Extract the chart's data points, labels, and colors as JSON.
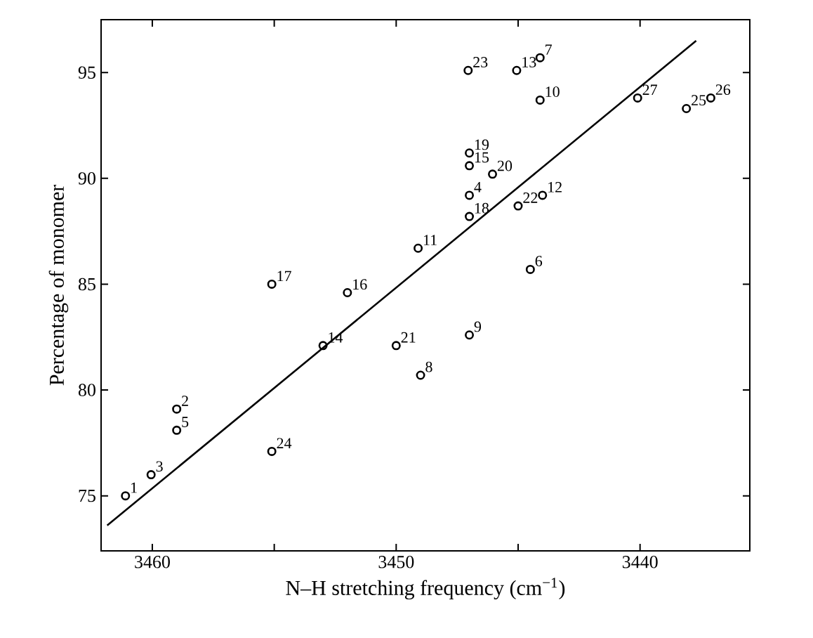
{
  "chart_data": {
    "type": "scatter",
    "xlabel": "N–H stretching frequency (cm$^{−1}$)",
    "ylabel": "Percentage of monomer",
    "xlim": [
      3462.1,
      3435.5
    ],
    "ylim": [
      72.4,
      97.5
    ],
    "xticks": [
      3460,
      {
        "value": 3455,
        "label": null
      },
      3450,
      {
        "value": 3445,
        "label": null
      },
      3440
    ],
    "yticks": [
      75,
      80,
      85,
      90,
      95
    ],
    "grid": false,
    "series": [
      {
        "color": "#000000",
        "marker": "circle",
        "x": [
          3461.1,
          3459.0,
          3460.05,
          3447.0,
          3459.0,
          3444.5,
          3444.1,
          3449.0,
          3447.0,
          3444.1,
          3449.1,
          3444.0,
          3445.06,
          3453.0,
          3447.0,
          3452.0,
          3455.1,
          3447.0,
          3447.0,
          3446.05,
          3450.0,
          3445.0,
          3447.05,
          3455.1,
          3438.1,
          3437.1,
          3440.1
        ],
        "values": [
          75.0,
          79.1,
          76.0,
          89.2,
          78.1,
          85.7,
          95.7,
          80.7,
          82.6,
          93.7,
          86.7,
          89.2,
          95.1,
          82.1,
          90.6,
          84.6,
          85.0,
          88.2,
          91.2,
          90.2,
          82.1,
          88.7,
          95.1,
          77.1,
          93.3,
          93.8,
          93.8
        ]
      },
      {
        "type": "line",
        "color": "#000000",
        "marker": "none",
        "line_style": "solid",
        "x": [
          3461.85,
          3437.7
        ],
        "values": [
          73.6,
          96.5
        ]
      }
    ],
    "annotations": [
      {
        "text": "1",
        "x": 3461.1,
        "y": 75.0
      },
      {
        "text": "2",
        "x": 3459.0,
        "y": 79.1
      },
      {
        "text": "3",
        "x": 3460.05,
        "y": 76.0
      },
      {
        "text": "4",
        "x": 3447.0,
        "y": 89.2
      },
      {
        "text": "5",
        "x": 3459.0,
        "y": 78.1
      },
      {
        "text": "6",
        "x": 3444.5,
        "y": 85.7
      },
      {
        "text": "7",
        "x": 3444.1,
        "y": 95.7
      },
      {
        "text": "8",
        "x": 3449.0,
        "y": 80.7
      },
      {
        "text": "9",
        "x": 3447.0,
        "y": 82.6
      },
      {
        "text": "10",
        "x": 3444.1,
        "y": 93.7
      },
      {
        "text": "11",
        "x": 3449.1,
        "y": 86.7
      },
      {
        "text": "12",
        "x": 3444.0,
        "y": 89.2
      },
      {
        "text": "13",
        "x": 3445.06,
        "y": 95.1
      },
      {
        "text": "14",
        "x": 3453.0,
        "y": 82.1
      },
      {
        "text": "15",
        "x": 3447.0,
        "y": 90.6
      },
      {
        "text": "16",
        "x": 3452.0,
        "y": 84.6
      },
      {
        "text": "17",
        "x": 3455.1,
        "y": 85.0
      },
      {
        "text": "18",
        "x": 3447.0,
        "y": 88.2
      },
      {
        "text": "19",
        "x": 3447.0,
        "y": 91.2
      },
      {
        "text": "20",
        "x": 3446.05,
        "y": 90.2
      },
      {
        "text": "21",
        "x": 3450.0,
        "y": 82.1
      },
      {
        "text": "22",
        "x": 3445.0,
        "y": 88.7
      },
      {
        "text": "23",
        "x": 3447.05,
        "y": 95.1
      },
      {
        "text": "24",
        "x": 3455.1,
        "y": 77.1
      },
      {
        "text": "25",
        "x": 3438.1,
        "y": 93.3
      },
      {
        "text": "26",
        "x": 3437.1,
        "y": 93.8
      },
      {
        "text": "27",
        "x": 3440.1,
        "y": 93.8
      }
    ]
  }
}
